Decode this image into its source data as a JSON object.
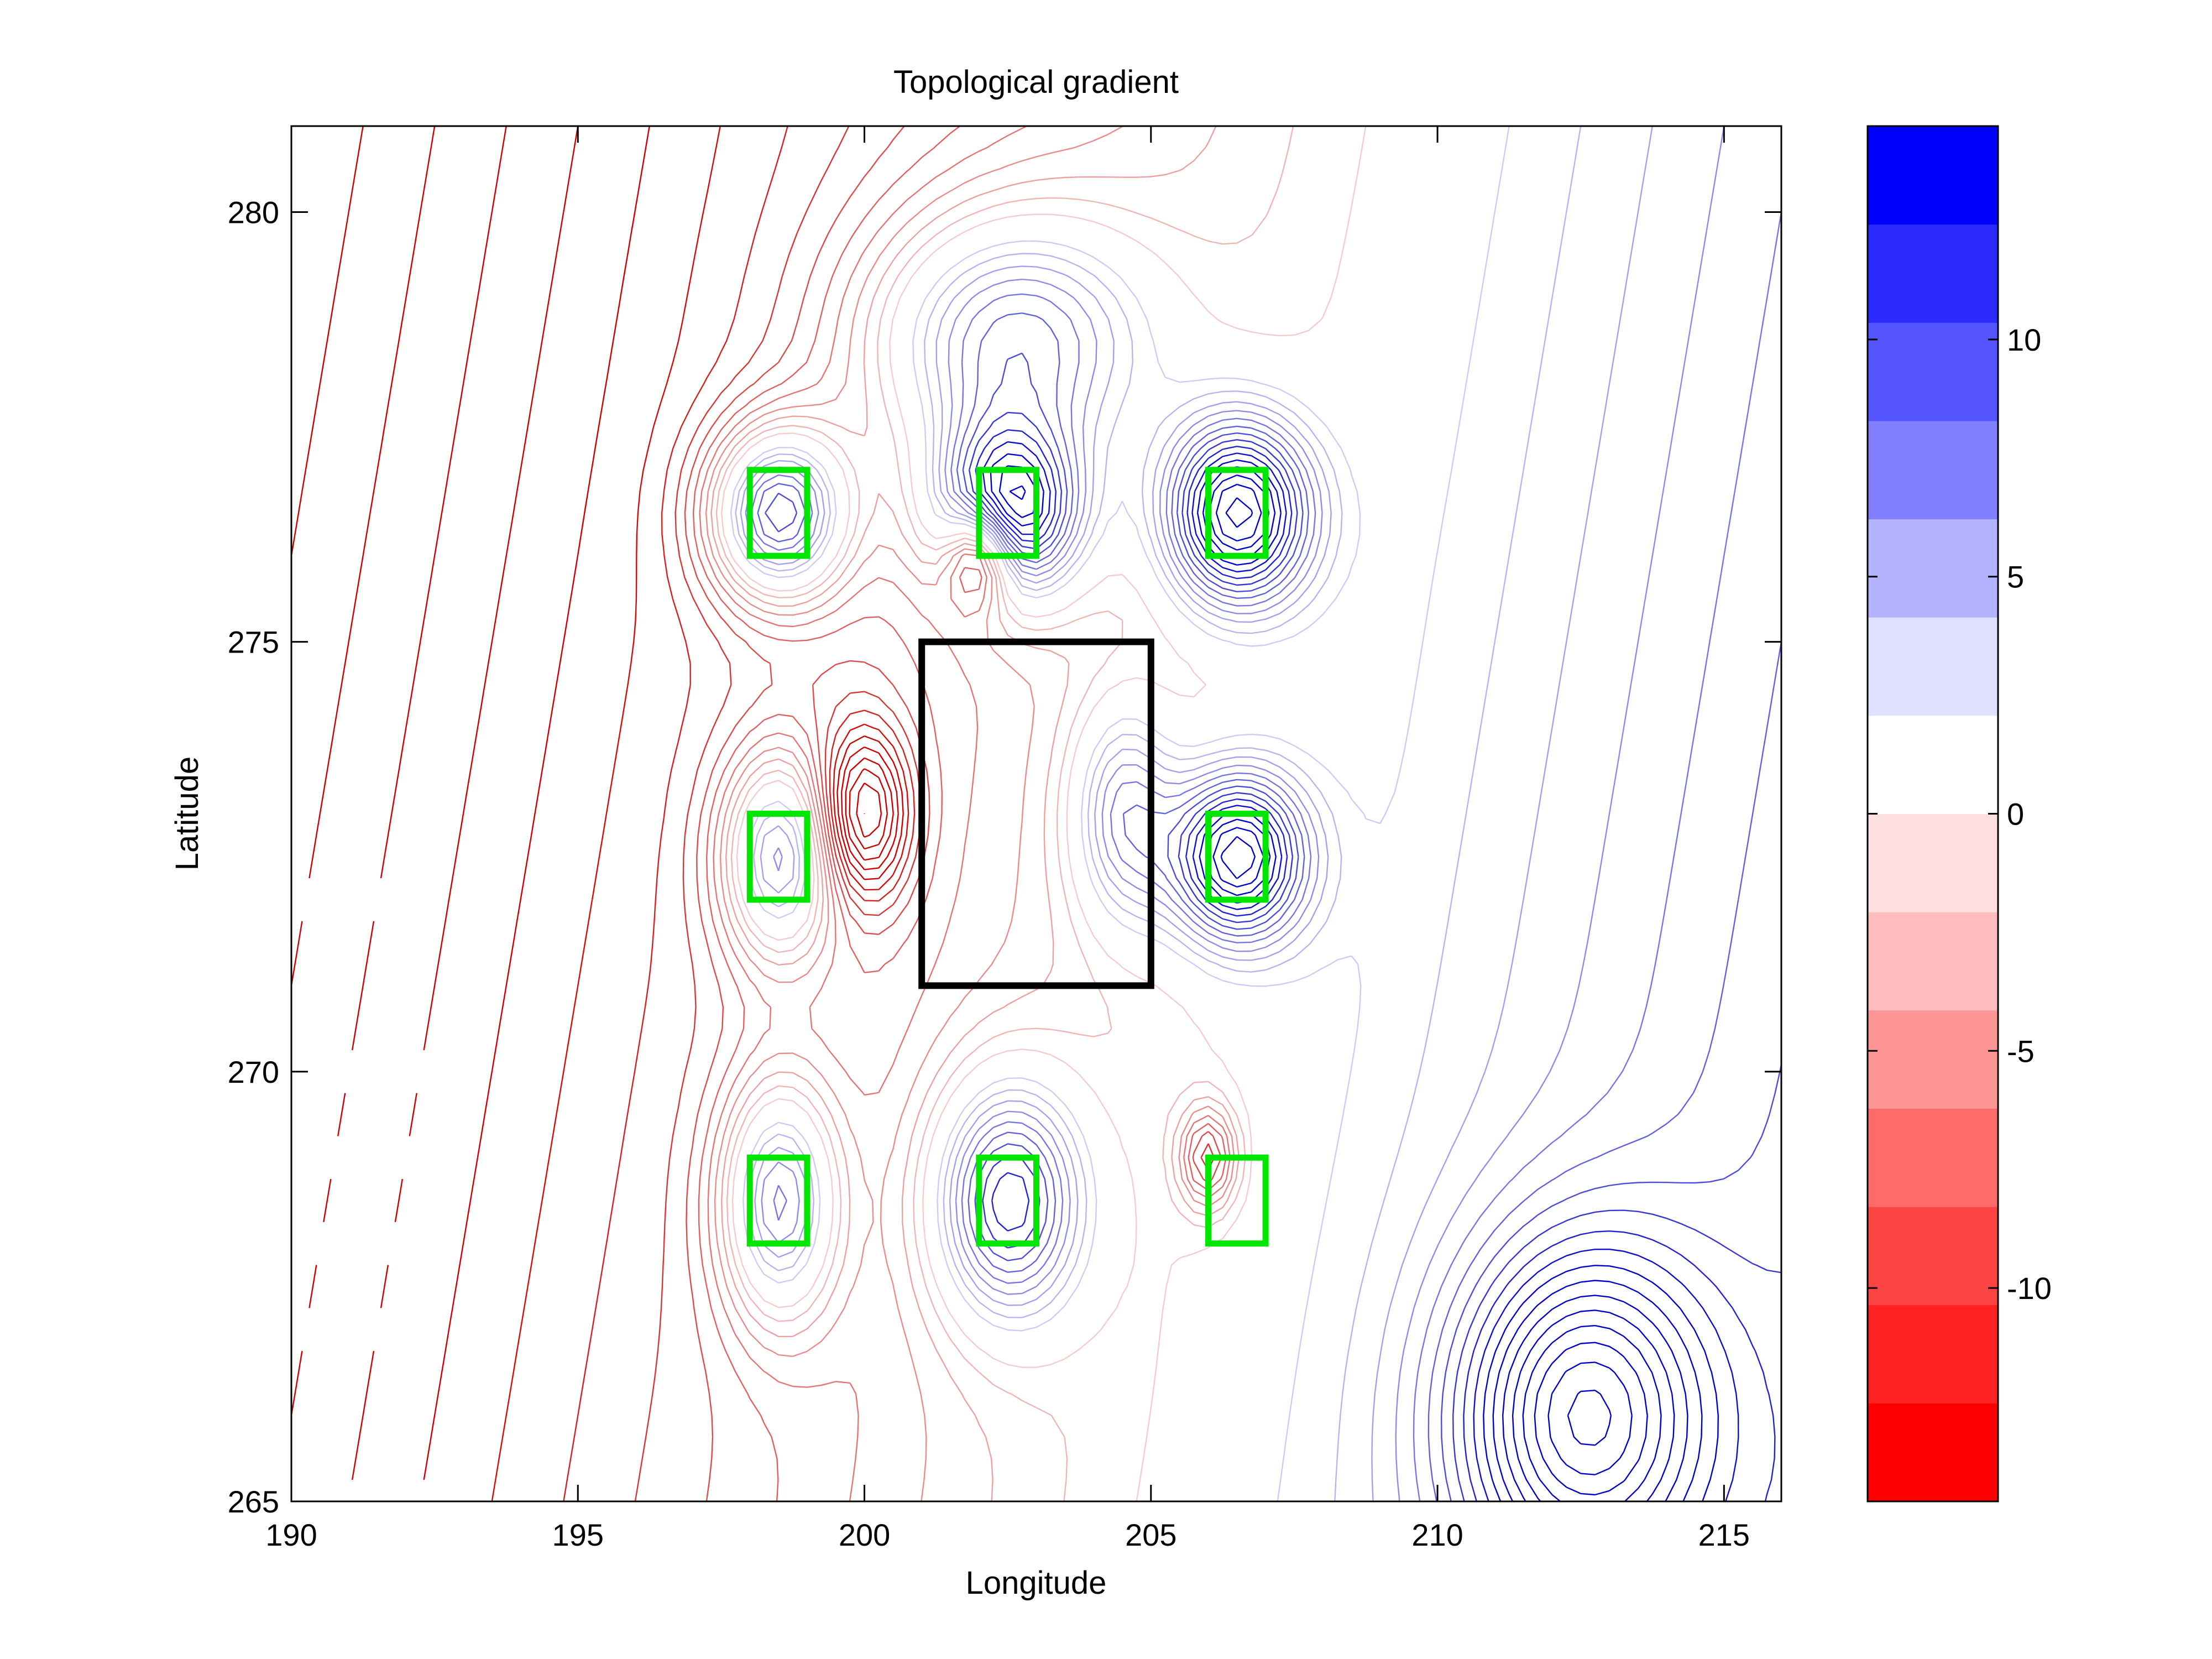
{
  "chart_data": {
    "type": "contour",
    "title": "Topological gradient",
    "xlabel": "Longitude",
    "ylabel": "Latitude",
    "xlim": [
      190,
      216
    ],
    "ylim": [
      265,
      281
    ],
    "x_ticks": [
      190,
      195,
      200,
      205,
      210,
      215
    ],
    "y_ticks": [
      265,
      270,
      275,
      280
    ],
    "grid": false,
    "colorbar": {
      "range": [
        -14.5,
        14.5
      ],
      "ticks": [
        10,
        5,
        0,
        -5,
        -10
      ],
      "levels": 13,
      "colors": [
        "#ff0000",
        "#ff2222",
        "#ff4444",
        "#ff6b6b",
        "#ff9696",
        "#ffbcbc",
        "#ffe0e0",
        "#ffffff",
        "#e0e0ff",
        "#b3b3ff",
        "#8080ff",
        "#5555ff",
        "#2b2bff",
        "#0000ff"
      ]
    },
    "contour_colors": {
      "positive": "#0000cc",
      "negative": "#cc0000"
    },
    "field_sources": [
      {
        "x": 198.5,
        "y": 276.5,
        "amp": 12,
        "sx": 1.2,
        "sy": 1.0
      },
      {
        "x": 202.5,
        "y": 276.5,
        "amp": 13,
        "sx": 1.3,
        "sy": 1.0
      },
      {
        "x": 206.5,
        "y": 276.5,
        "amp": 13,
        "sx": 1.3,
        "sy": 1.1
      },
      {
        "x": 202.5,
        "y": 278.5,
        "amp": 9,
        "sx": 2.5,
        "sy": 1.5
      },
      {
        "x": 198.5,
        "y": 272.5,
        "amp": 9,
        "sx": 1.0,
        "sy": 1.2
      },
      {
        "x": 206.5,
        "y": 272.5,
        "amp": 12,
        "sx": 1.2,
        "sy": 1.0
      },
      {
        "x": 198.5,
        "y": 268.5,
        "amp": 9,
        "sx": 1.0,
        "sy": 1.4
      },
      {
        "x": 202.5,
        "y": 268.5,
        "amp": 10,
        "sx": 1.3,
        "sy": 1.4
      },
      {
        "x": 204.5,
        "y": 273.0,
        "amp": 6,
        "sx": 0.9,
        "sy": 1.3
      },
      {
        "x": 212.5,
        "y": 266.0,
        "amp": 10,
        "sx": 2.2,
        "sy": 2.0
      },
      {
        "x": 202.0,
        "y": 276.0,
        "amp": -9,
        "sx": 0.6,
        "sy": 0.6
      },
      {
        "x": 200.0,
        "y": 273.0,
        "amp": -8,
        "sx": 0.8,
        "sy": 1.0
      },
      {
        "x": 206.0,
        "y": 269.0,
        "amp": -6,
        "sx": 0.5,
        "sy": 0.6
      }
    ],
    "green_boxes": [
      {
        "x0": 198,
        "x1": 199,
        "y0": 276,
        "y1": 277
      },
      {
        "x0": 202,
        "x1": 203,
        "y0": 276,
        "y1": 277
      },
      {
        "x0": 206,
        "x1": 207,
        "y0": 276,
        "y1": 277
      },
      {
        "x0": 198,
        "x1": 199,
        "y0": 272,
        "y1": 273
      },
      {
        "x0": 206,
        "x1": 207,
        "y0": 272,
        "y1": 273
      },
      {
        "x0": 198,
        "x1": 199,
        "y0": 268,
        "y1": 269
      },
      {
        "x0": 202,
        "x1": 203,
        "y0": 268,
        "y1": 269
      },
      {
        "x0": 206,
        "x1": 207,
        "y0": 268,
        "y1": 269
      }
    ],
    "black_box": {
      "x0": 201,
      "x1": 205,
      "y0": 271,
      "y1": 275
    },
    "box_colors": {
      "green": "#00e600",
      "black": "#000000"
    }
  }
}
